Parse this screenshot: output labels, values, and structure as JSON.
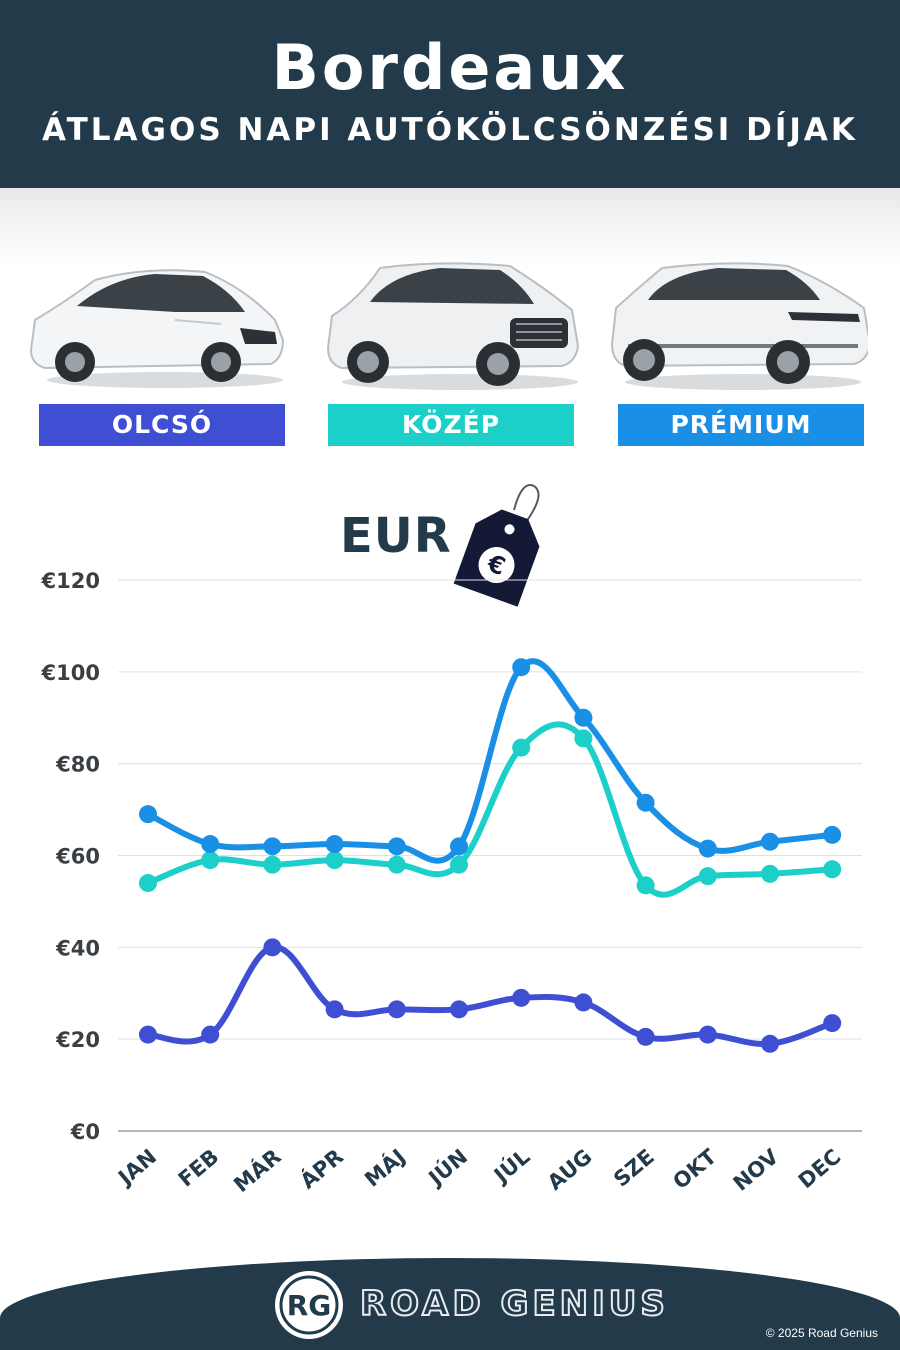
{
  "header": {
    "city": "Bordeaux",
    "subtitle": "ÁTLAGOS NAPI AUTÓKÖLCSÖNZÉSI DÍJAK"
  },
  "categories": [
    {
      "label": "OLCSÓ",
      "color": "#3f4fd3"
    },
    {
      "label": "KÖZÉP",
      "color": "#1ccfc9"
    },
    {
      "label": "PRÉMIUM",
      "color": "#1a8fe6"
    }
  ],
  "currency_label": "EUR",
  "currency_icon": "euro-price-tag-icon",
  "chart_data": {
    "type": "line",
    "x": [
      "JAN",
      "FEB",
      "MÁR",
      "ÁPR",
      "MÁJ",
      "JÚN",
      "JÚL",
      "AUG",
      "SZE",
      "OKT",
      "NOV",
      "DEC"
    ],
    "ylim": [
      0,
      120
    ],
    "yticks": [
      0,
      20,
      40,
      60,
      80,
      100,
      120
    ],
    "ytick_labels": [
      "€0",
      "€20",
      "€40",
      "€60",
      "€80",
      "€100",
      "€120"
    ],
    "grid": true,
    "series": [
      {
        "name": "OLCSÓ",
        "color": "#3f4fd3",
        "values": [
          21,
          21,
          40,
          26.5,
          26.5,
          26.5,
          29,
          28,
          20.5,
          21,
          19,
          23.5
        ]
      },
      {
        "name": "KÖZÉP",
        "color": "#1ccfc9",
        "values": [
          54,
          59,
          58,
          59,
          58,
          58,
          83.5,
          85.5,
          53.5,
          55.5,
          56,
          57
        ]
      },
      {
        "name": "PRÉMIUM",
        "color": "#1a8fe6",
        "values": [
          69,
          62.5,
          62,
          62.5,
          62,
          62,
          101,
          90,
          71.5,
          61.5,
          63,
          64.5
        ]
      }
    ]
  },
  "footer": {
    "logo_text": "RG",
    "brand": "ROAD GENIUS",
    "copyright": "© 2025 Road Genius"
  }
}
